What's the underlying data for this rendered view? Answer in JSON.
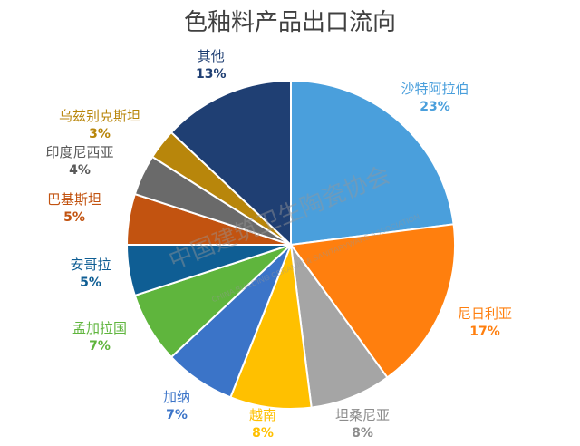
{
  "title": "色釉料产品出口流向",
  "watermark": {
    "cn": "中国建筑卫生陶瓷协会",
    "en": "CHINA BUILDING CERAMIC & SANITARYWARE ASSOCIATION"
  },
  "chart_data": {
    "type": "pie",
    "title": "色釉料产品出口流向",
    "slices": [
      {
        "label": "沙特阿拉伯",
        "value": 23,
        "pct": "23%",
        "color": "#4a9fdc"
      },
      {
        "label": "尼日利亚",
        "value": 17,
        "pct": "17%",
        "color": "#ff7f0e"
      },
      {
        "label": "坦桑尼亚",
        "value": 8,
        "pct": "8%",
        "color": "#a5a5a5"
      },
      {
        "label": "越南",
        "value": 8,
        "pct": "8%",
        "color": "#ffc000"
      },
      {
        "label": "加纳",
        "value": 7,
        "pct": "7%",
        "color": "#3b74c8"
      },
      {
        "label": "孟加拉国",
        "value": 7,
        "pct": "7%",
        "color": "#5fb53d"
      },
      {
        "label": "安哥拉",
        "value": 5,
        "pct": "5%",
        "color": "#0f5e94"
      },
      {
        "label": "巴基斯坦",
        "value": 5,
        "pct": "5%",
        "color": "#c25310"
      },
      {
        "label": "印度尼西亚",
        "value": 4,
        "pct": "4%",
        "color": "#6a6a6a"
      },
      {
        "label": "乌兹别克斯坦",
        "value": 3,
        "pct": "3%",
        "color": "#b8860b"
      },
      {
        "label": "其他",
        "value": 13,
        "pct": "13%",
        "color": "#1f3f73"
      }
    ],
    "label_colors": [
      "#4a9fdc",
      "#ff7f0e",
      "#8c8c8c",
      "#ffc000",
      "#3b74c8",
      "#5fb53d",
      "#0f5e94",
      "#c25310",
      "#595959",
      "#b8860b",
      "#1f3f73"
    ]
  }
}
